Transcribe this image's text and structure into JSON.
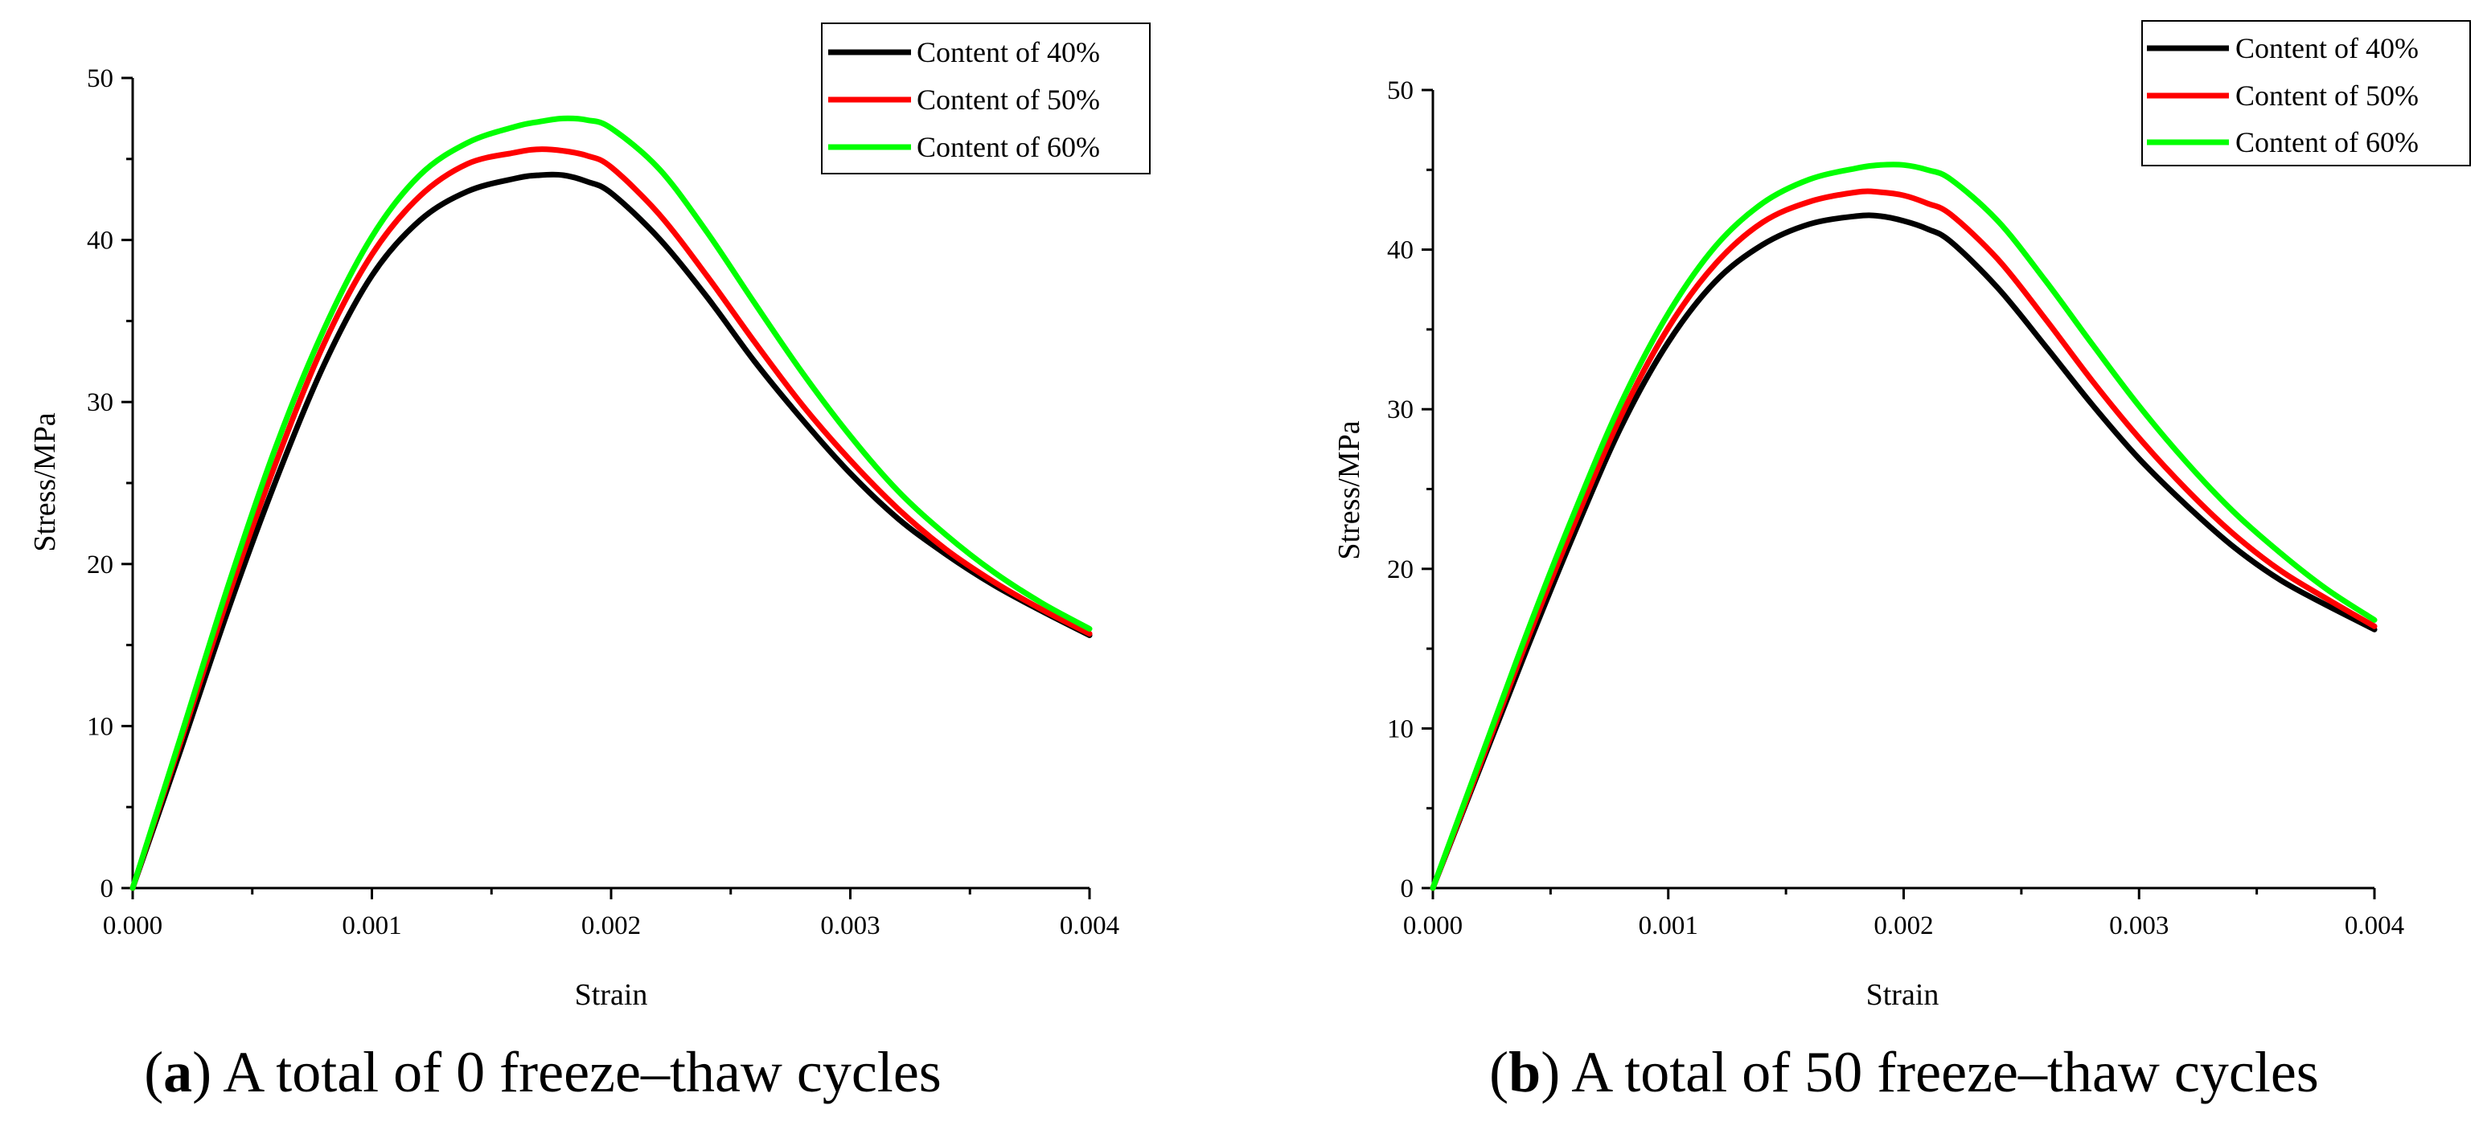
{
  "chart_data": [
    {
      "type": "line",
      "panel_letter": "a",
      "caption_text": "A total of 0 freeze–thaw cycles",
      "title": "",
      "xlabel": "Strain",
      "ylabel": "Stress/MPa",
      "xlim": [
        0,
        0.004
      ],
      "ylim": [
        0,
        50
      ],
      "x_ticks": [
        "0.000",
        "0.001",
        "0.002",
        "0.003",
        "0.004"
      ],
      "y_ticks": [
        "0",
        "10",
        "20",
        "30",
        "40",
        "50"
      ],
      "legend_position": "top-right",
      "series": [
        {
          "name": "Content of 40%",
          "color": "#000000",
          "x": [
            0,
            0.0002,
            0.0004,
            0.0006,
            0.0008,
            0.001,
            0.0012,
            0.0014,
            0.0016,
            0.0017,
            0.0018,
            0.0019,
            0.002,
            0.0022,
            0.0024,
            0.0026,
            0.0028,
            0.003,
            0.0032,
            0.0034,
            0.0036,
            0.0038,
            0.004
          ],
          "y": [
            0,
            8.5,
            17.2,
            25.2,
            32.3,
            37.8,
            41.2,
            43.0,
            43.8,
            44.0,
            44.0,
            43.6,
            42.9,
            40.1,
            36.5,
            32.5,
            28.9,
            25.6,
            22.8,
            20.6,
            18.7,
            17.1,
            15.6
          ]
        },
        {
          "name": "Content of 50%",
          "color": "#ff0000",
          "x": [
            0,
            0.0002,
            0.0004,
            0.0006,
            0.0008,
            0.001,
            0.0012,
            0.0014,
            0.0016,
            0.0017,
            0.0018,
            0.0019,
            0.002,
            0.0022,
            0.0024,
            0.0026,
            0.0028,
            0.003,
            0.0032,
            0.0034,
            0.0036,
            0.0038,
            0.004
          ],
          "y": [
            0,
            9.0,
            18.0,
            26.3,
            33.6,
            39.1,
            42.7,
            44.7,
            45.4,
            45.6,
            45.5,
            45.2,
            44.5,
            41.6,
            37.8,
            33.7,
            29.8,
            26.4,
            23.4,
            20.9,
            18.9,
            17.2,
            15.7
          ]
        },
        {
          "name": "Content of 60%",
          "color": "#00ff00",
          "x": [
            0,
            0.0002,
            0.0004,
            0.0006,
            0.0008,
            0.001,
            0.0012,
            0.0014,
            0.0016,
            0.0017,
            0.0018,
            0.0019,
            0.002,
            0.0022,
            0.0024,
            0.0026,
            0.0028,
            0.003,
            0.0032,
            0.0034,
            0.0036,
            0.0038,
            0.004
          ],
          "y": [
            0,
            9.3,
            18.7,
            27.3,
            34.5,
            40.2,
            44.0,
            46.0,
            47.0,
            47.3,
            47.5,
            47.4,
            46.9,
            44.4,
            40.5,
            36.1,
            31.8,
            27.9,
            24.5,
            21.8,
            19.5,
            17.6,
            16.0
          ]
        }
      ]
    },
    {
      "type": "line",
      "panel_letter": "b",
      "caption_text": "A total of 50 freeze–thaw cycles",
      "title": "",
      "xlabel": "Strain",
      "ylabel": "Stress/MPa",
      "xlim": [
        0,
        0.004
      ],
      "ylim": [
        0,
        50
      ],
      "x_ticks": [
        "0.000",
        "0.001",
        "0.002",
        "0.003",
        "0.004"
      ],
      "y_ticks": [
        "0",
        "10",
        "20",
        "30",
        "40",
        "50"
      ],
      "legend_position": "top-right",
      "series": [
        {
          "name": "Content of 40%",
          "color": "#000000",
          "x": [
            0,
            0.0002,
            0.0004,
            0.0006,
            0.0008,
            0.001,
            0.0012,
            0.0014,
            0.0016,
            0.0018,
            0.0019,
            0.002,
            0.0021,
            0.0022,
            0.0024,
            0.0026,
            0.0028,
            0.003,
            0.0032,
            0.0034,
            0.0036,
            0.0038,
            0.004
          ],
          "y": [
            0,
            7.5,
            15.0,
            22.2,
            28.9,
            34.2,
            38.0,
            40.3,
            41.6,
            42.1,
            42.1,
            41.8,
            41.3,
            40.5,
            37.6,
            34.0,
            30.3,
            26.9,
            24.0,
            21.4,
            19.3,
            17.7,
            16.2
          ]
        },
        {
          "name": "Content of 50%",
          "color": "#ff0000",
          "x": [
            0,
            0.0002,
            0.0004,
            0.0006,
            0.0008,
            0.001,
            0.0012,
            0.0014,
            0.0016,
            0.0018,
            0.0019,
            0.002,
            0.0021,
            0.0022,
            0.0024,
            0.0026,
            0.0028,
            0.003,
            0.0032,
            0.0034,
            0.0036,
            0.0038,
            0.004
          ],
          "y": [
            0,
            7.7,
            15.5,
            22.8,
            29.6,
            35.1,
            39.1,
            41.7,
            43.0,
            43.6,
            43.6,
            43.4,
            42.9,
            42.2,
            39.4,
            35.7,
            31.8,
            28.2,
            25.0,
            22.2,
            19.9,
            18.1,
            16.4
          ]
        },
        {
          "name": "Content of 60%",
          "color": "#00ff00",
          "x": [
            0,
            0.0002,
            0.0004,
            0.0006,
            0.0008,
            0.001,
            0.0012,
            0.0014,
            0.0016,
            0.0018,
            0.0019,
            0.002,
            0.0021,
            0.0022,
            0.0024,
            0.0026,
            0.0028,
            0.003,
            0.0032,
            0.0034,
            0.0036,
            0.0038,
            0.004
          ],
          "y": [
            0,
            8.0,
            16.0,
            23.5,
            30.4,
            36.0,
            40.2,
            42.9,
            44.4,
            45.1,
            45.3,
            45.3,
            45.0,
            44.4,
            41.8,
            38.1,
            34.1,
            30.2,
            26.7,
            23.6,
            21.0,
            18.7,
            16.8
          ]
        }
      ]
    }
  ]
}
